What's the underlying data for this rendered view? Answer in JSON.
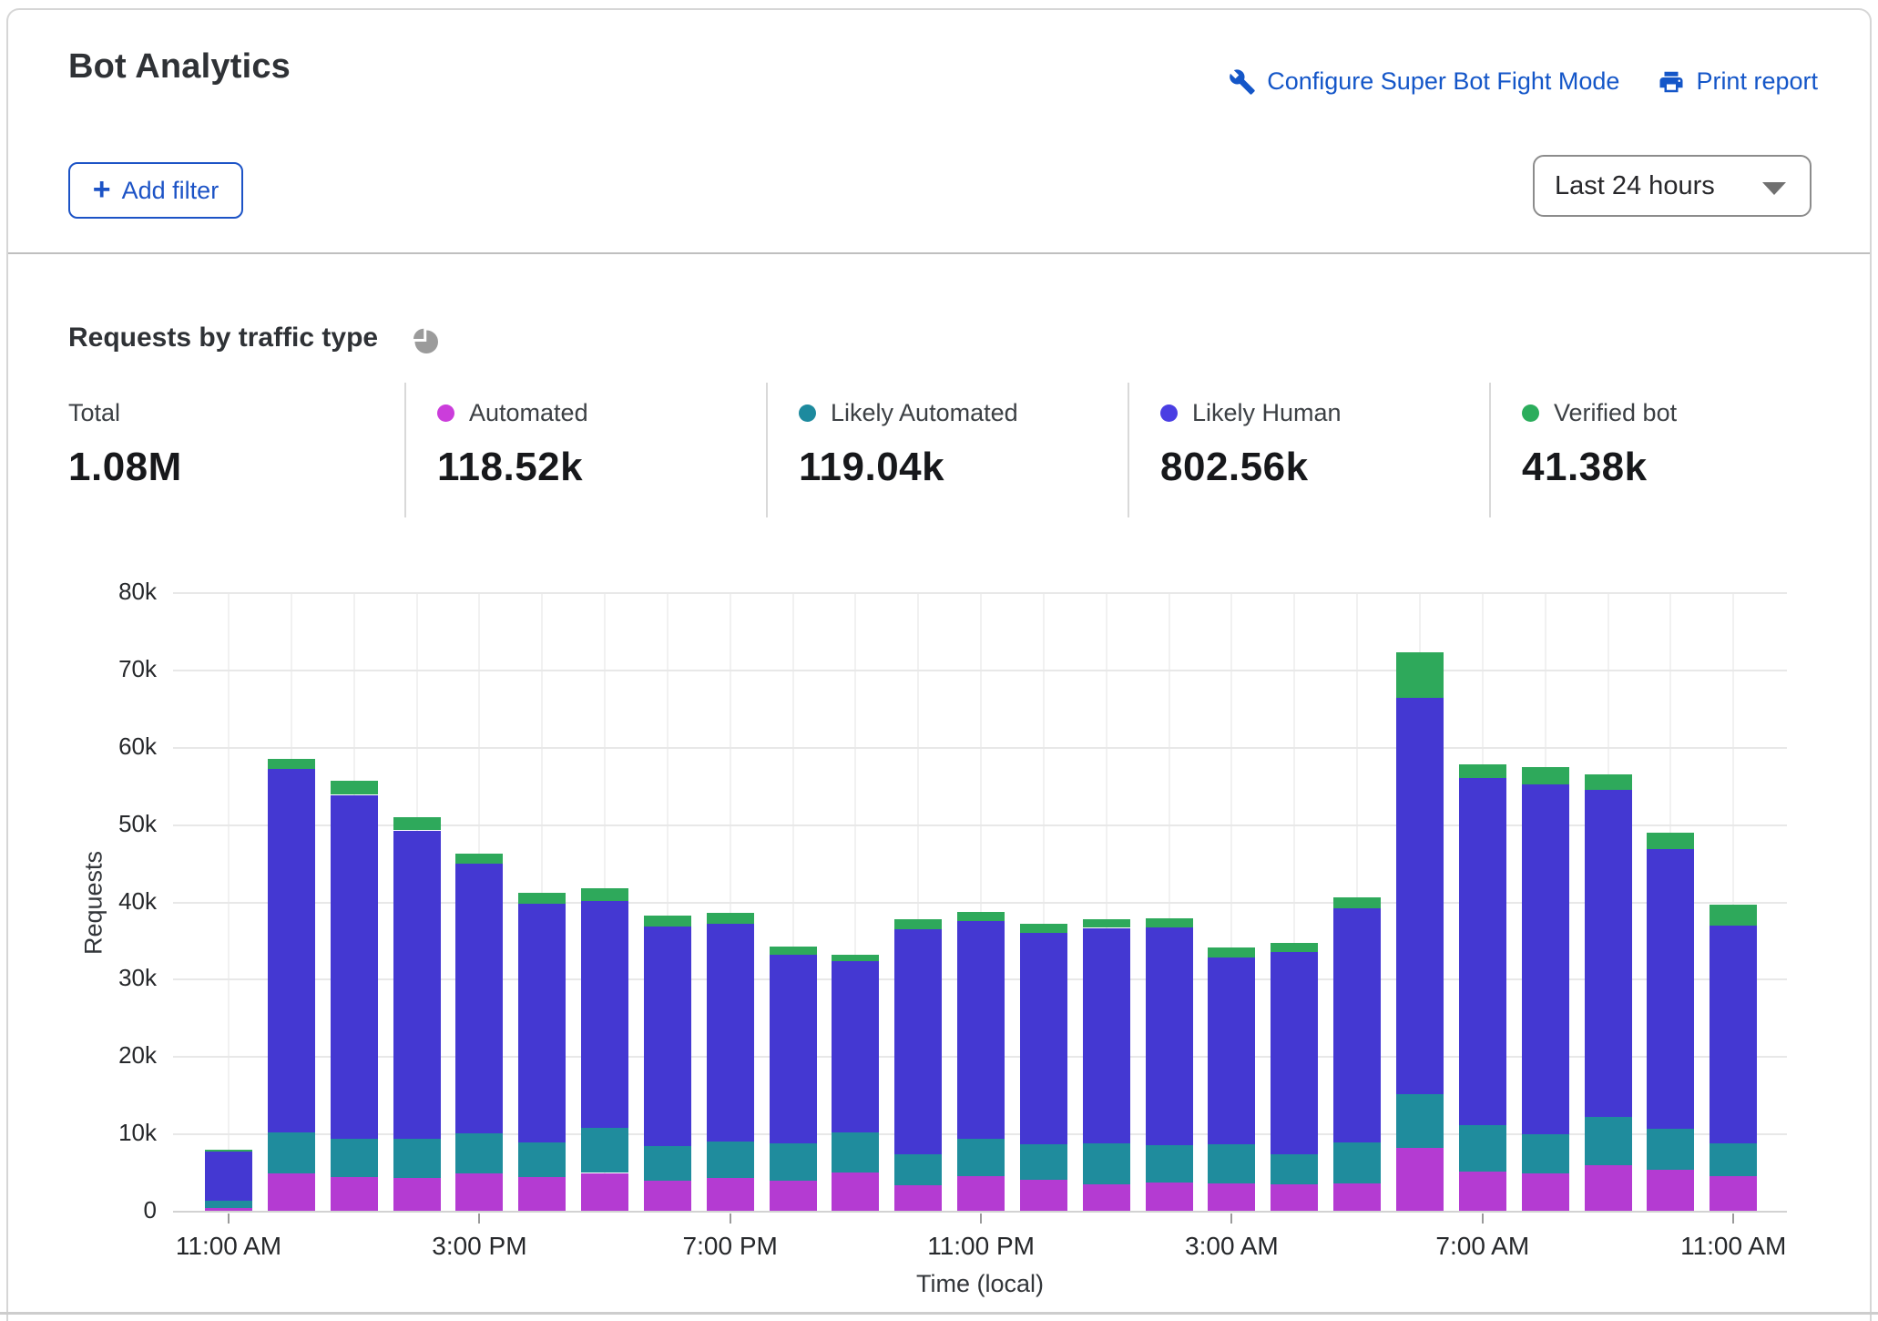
{
  "header": {
    "title": "Bot Analytics",
    "links": [
      {
        "label": "Configure Super Bot Fight Mode",
        "icon": "wrench-icon"
      },
      {
        "label": "Print report",
        "icon": "printer-icon"
      }
    ],
    "add_filter_label": "Add filter",
    "time_range_value": "Last 24 hours"
  },
  "section": {
    "title": "Requests by traffic type",
    "stats": [
      {
        "label": "Total",
        "value": "1.08M",
        "dot_color": ""
      },
      {
        "label": "Automated",
        "value": "118.52k",
        "dot_color": "#CB3DDB"
      },
      {
        "label": "Likely Automated",
        "value": "119.04k",
        "dot_color": "#1D8A9E"
      },
      {
        "label": "Likely Human",
        "value": "802.56k",
        "dot_color": "#4A3EE3"
      },
      {
        "label": "Verified bot",
        "value": "41.38k",
        "dot_color": "#2BAD5C"
      }
    ]
  },
  "chart_data": {
    "type": "bar",
    "stacked": true,
    "title": "Requests by traffic type",
    "xlabel": "Time (local)",
    "ylabel": "Requests",
    "y_unit": "thousands of requests",
    "ylim": [
      0,
      80
    ],
    "grid": true,
    "y_tick_labels": [
      "0",
      "10k",
      "20k",
      "30k",
      "40k",
      "50k",
      "60k",
      "70k",
      "80k"
    ],
    "x_tick_labels": [
      {
        "index": 0,
        "label": "11:00 AM"
      },
      {
        "index": 4,
        "label": "3:00 PM"
      },
      {
        "index": 8,
        "label": "7:00 PM"
      },
      {
        "index": 12,
        "label": "11:00 PM"
      },
      {
        "index": 16,
        "label": "3:00 AM"
      },
      {
        "index": 20,
        "label": "7:00 AM"
      },
      {
        "index": 24,
        "label": "11:00 AM"
      }
    ],
    "series": [
      {
        "name": "Automated",
        "color": "#B43BD2",
        "values": [
          0.5,
          4.9,
          4.5,
          4.4,
          4.9,
          4.5,
          5.0,
          4.0,
          4.4,
          4.0,
          5.1,
          3.4,
          4.6,
          4.1,
          3.5,
          3.8,
          3.6,
          3.5,
          3.7,
          8.2,
          5.2,
          4.9,
          6.0,
          5.4,
          4.6
        ]
      },
      {
        "name": "Likely Automated",
        "color": "#1F8C9D",
        "values": [
          0.9,
          5.3,
          4.9,
          5.0,
          5.2,
          4.5,
          5.8,
          4.5,
          4.7,
          4.8,
          5.2,
          4.0,
          4.8,
          4.6,
          5.3,
          4.8,
          5.1,
          3.9,
          5.3,
          7.0,
          6.0,
          5.1,
          6.3,
          5.3,
          4.2
        ]
      },
      {
        "name": "Likely Human",
        "color": "#4438D2",
        "values": [
          6.4,
          47.1,
          44.5,
          39.9,
          34.9,
          30.8,
          29.4,
          28.4,
          28.1,
          24.4,
          22.1,
          29.1,
          28.2,
          27.4,
          27.9,
          28.2,
          24.2,
          26.2,
          30.2,
          51.3,
          44.9,
          45.3,
          42.3,
          36.2,
          28.2
        ]
      },
      {
        "name": "Verified bot",
        "color": "#2EA95B",
        "values": [
          0.2,
          1.3,
          1.8,
          1.7,
          1.3,
          1.4,
          1.6,
          1.4,
          1.4,
          1.1,
          0.8,
          1.3,
          1.2,
          1.1,
          1.1,
          1.1,
          1.3,
          1.2,
          1.5,
          5.9,
          1.8,
          2.2,
          2.0,
          2.1,
          2.7
        ]
      }
    ],
    "totals_legend": [
      {
        "label": "Total",
        "value": "1.08M"
      },
      {
        "label": "Automated",
        "value": "118.52k"
      },
      {
        "label": "Likely Automated",
        "value": "119.04k"
      },
      {
        "label": "Likely Human",
        "value": "802.56k"
      },
      {
        "label": "Verified bot",
        "value": "41.38k"
      }
    ]
  }
}
